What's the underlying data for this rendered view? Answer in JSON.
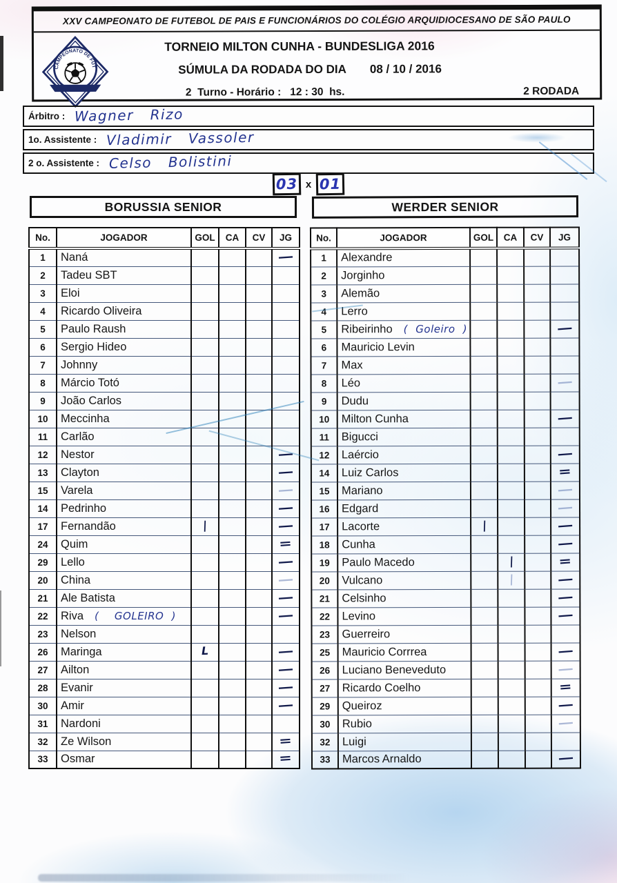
{
  "header": {
    "title": "XXV CAMPEONATO DE FUTEBOL DE PAIS E FUNCIONÁRIOS DO COLÉGIO ARQUIDIOCESANO DE SÃO PAULO",
    "tournament": "TORNEIO MILTON CUNHA - BUNDESLIGA 2016",
    "sumula_label": "SÚMULA DA RODADA DO DIA",
    "date": "08 / 10 / 2016",
    "turno_line": "2  Turno - Horário :   12 : 30  hs.",
    "rodada": "2 RODADA",
    "crest_arc_text": "CAMPEONATO DE FUTEBOL"
  },
  "officials": {
    "arbitro_label": "Árbitro : ",
    "arbitro_name": "Wagner  Rizo",
    "assistente1_label": "1o. Assistente : ",
    "assistente1_name": "Vladimir  Vassoler",
    "assistente2_label": "2 o. Assistente : ",
    "assistente2_name": "Celso  Bolistini"
  },
  "score": {
    "home": "03",
    "separator": "x",
    "away": "01"
  },
  "columns": [
    "No.",
    "JOGADOR",
    "GOL",
    "CA",
    "CV",
    "JG"
  ],
  "teams": [
    {
      "name": "BORUSSIA SENIOR",
      "players": [
        {
          "no": "1",
          "name": "Naná",
          "jg": "dash"
        },
        {
          "no": "2",
          "name": "Tadeu SBT"
        },
        {
          "no": "3",
          "name": "Eloi"
        },
        {
          "no": "4",
          "name": "Ricardo Oliveira"
        },
        {
          "no": "5",
          "name": "Paulo Raush"
        },
        {
          "no": "6",
          "name": "Sergio Hideo"
        },
        {
          "no": "7",
          "name": "Johnny"
        },
        {
          "no": "8",
          "name": "Márcio Totó"
        },
        {
          "no": "9",
          "name": "João Carlos"
        },
        {
          "no": "10",
          "name": "Meccinha"
        },
        {
          "no": "11",
          "name": "Carlão"
        },
        {
          "no": "12",
          "name": "Nestor",
          "jg": "dash"
        },
        {
          "no": "13",
          "name": "Clayton",
          "jg": "dash"
        },
        {
          "no": "15",
          "name": "Varela",
          "jg": "dash-faint"
        },
        {
          "no": "14",
          "name": "Pedrinho",
          "jg": "dash"
        },
        {
          "no": "17",
          "name": "Fernandão",
          "gol": "stroke",
          "jg": "dash"
        },
        {
          "no": "24",
          "name": "Quim",
          "jg": "dash2"
        },
        {
          "no": "29",
          "name": "Lello",
          "jg": "dash"
        },
        {
          "no": "20",
          "name": "China",
          "jg": "dash-faint"
        },
        {
          "no": "21",
          "name": "Ale Batista",
          "jg": "dash"
        },
        {
          "no": "22",
          "name": "Riva",
          "note": "(  GOLEIRO )",
          "jg": "dash"
        },
        {
          "no": "23",
          "name": "Nelson"
        },
        {
          "no": "26",
          "name": "Maringa",
          "gol": "ell",
          "jg": "dash"
        },
        {
          "no": "27",
          "name": "Ailton",
          "jg": "dash"
        },
        {
          "no": "28",
          "name": "Evanir",
          "jg": "dash"
        },
        {
          "no": "30",
          "name": "Amir",
          "jg": "dash"
        },
        {
          "no": "31",
          "name": "Nardoni"
        },
        {
          "no": "32",
          "name": "Ze Wilson",
          "jg": "dash2"
        },
        {
          "no": "33",
          "name": "Osmar",
          "jg": "dash2"
        }
      ]
    },
    {
      "name": "WERDER SENIOR",
      "players": [
        {
          "no": "1",
          "name": "Alexandre"
        },
        {
          "no": "2",
          "name": "Jorginho"
        },
        {
          "no": "3",
          "name": "Alemão"
        },
        {
          "no": "4",
          "name": "Lerro"
        },
        {
          "no": "5",
          "name": "Ribeirinho",
          "note": "( Goleiro )",
          "jg": "dash"
        },
        {
          "no": "6",
          "name": "Mauricio Levin"
        },
        {
          "no": "7",
          "name": "Max"
        },
        {
          "no": "8",
          "name": "Léo",
          "jg": "dash-faint"
        },
        {
          "no": "9",
          "name": "Dudu"
        },
        {
          "no": "10",
          "name": "Milton Cunha",
          "jg": "dash"
        },
        {
          "no": "11",
          "name": "Bigucci"
        },
        {
          "no": "12",
          "name": "Laércio",
          "jg": "dash"
        },
        {
          "no": "14",
          "name": "Luiz Carlos",
          "jg": "dash2"
        },
        {
          "no": "15",
          "name": "Mariano",
          "jg": "dash-faint"
        },
        {
          "no": "16",
          "name": "Edgard",
          "jg": "dash-faint"
        },
        {
          "no": "17",
          "name": "Lacorte",
          "gol": "stroke",
          "jg": "dash"
        },
        {
          "no": "18",
          "name": "Cunha",
          "jg": "dash"
        },
        {
          "no": "19",
          "name": "Paulo Macedo",
          "ca": "stroke",
          "jg": "dash2"
        },
        {
          "no": "20",
          "name": "Vulcano",
          "ca": "stroke-faint",
          "jg": "dash"
        },
        {
          "no": "21",
          "name": "Celsinho",
          "jg": "dash"
        },
        {
          "no": "22",
          "name": "Levino",
          "jg": "dash"
        },
        {
          "no": "23",
          "name": "Guerreiro"
        },
        {
          "no": "25",
          "name": "Mauricio Corrrea",
          "jg": "dash"
        },
        {
          "no": "26",
          "name": "Luciano Beneveduto",
          "jg": "dash-faint"
        },
        {
          "no": "27",
          "name": "Ricardo Coelho",
          "jg": "dash2"
        },
        {
          "no": "29",
          "name": "Queiroz",
          "jg": "dash"
        },
        {
          "no": "30",
          "name": "Rubio",
          "jg": "dash-faint"
        },
        {
          "no": "32",
          "name": "Luigi"
        },
        {
          "no": "33",
          "name": "Marcos Arnaldo",
          "jg": "dash"
        }
      ]
    }
  ],
  "colors": {
    "handwriting_ink": "#23338f",
    "score_ink": "#2a35b0",
    "print_black": "#141414",
    "row_line": "#44577a",
    "paper_blotch_cyan": "#a8d4ee",
    "paper_blotch_pink": "#eeb6cf"
  }
}
